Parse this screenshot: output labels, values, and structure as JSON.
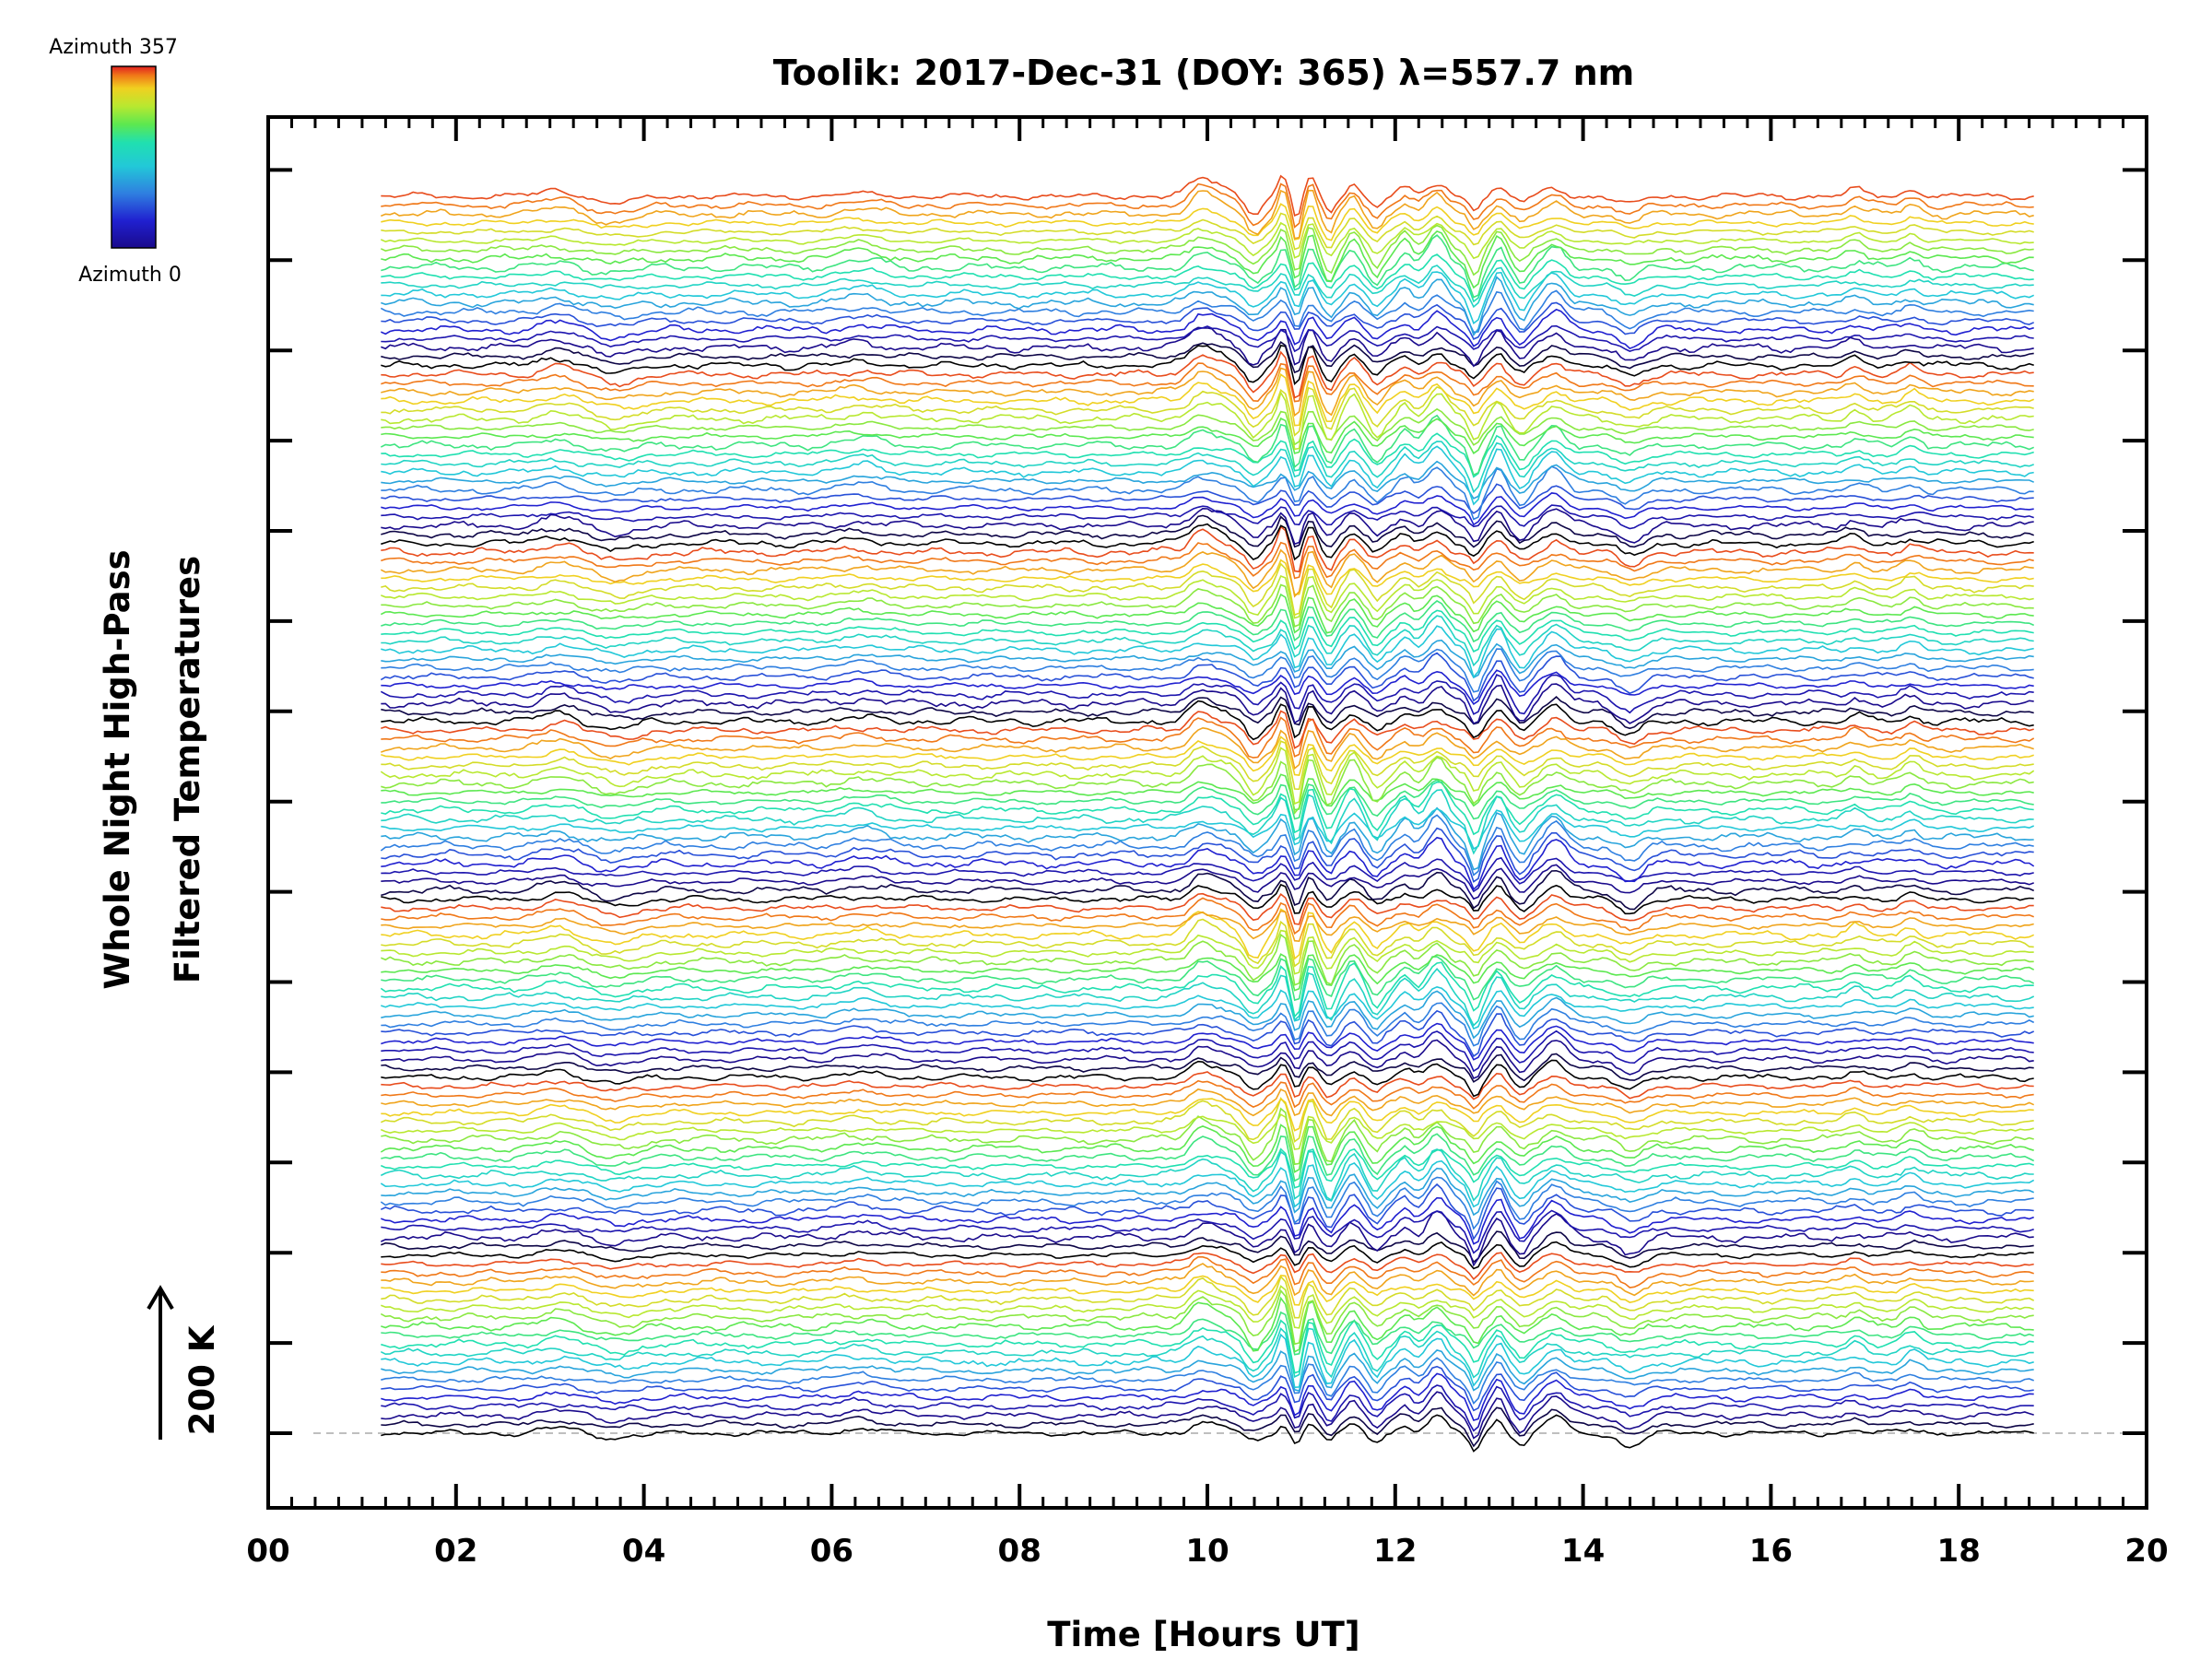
{
  "chart_data": {
    "type": "line",
    "title": "Toolik: 2017-Dec-31 (DOY: 365) λ=557.7 nm",
    "xlabel": "Time [Hours UT]",
    "ylabel_line1": "Whole Night High-Pass",
    "ylabel_line2": "Filtered Temperatures",
    "xlim": [
      0,
      20
    ],
    "x_tick_labels": [
      "00",
      "02",
      "04",
      "06",
      "08",
      "10",
      "12",
      "14",
      "16",
      "18",
      "20"
    ],
    "data_time_range": [
      1.2,
      18.8
    ],
    "scale_bar_label": "200 K",
    "colorbar": {
      "top_label": "Azimuth 357",
      "bottom_label": "Azimuth 0",
      "colormap": "rainbow",
      "colors": [
        "#000000",
        "#1a0a8c",
        "#2020d0",
        "#2f7fe0",
        "#22c8d8",
        "#20e0b0",
        "#5ce850",
        "#b8e830",
        "#f0d020",
        "#f07818",
        "#e02020"
      ]
    },
    "num_traces": 140,
    "active_period_hours": [
      9.5,
      14.5
    ],
    "grid": false,
    "legend": "colorbar top-left"
  }
}
